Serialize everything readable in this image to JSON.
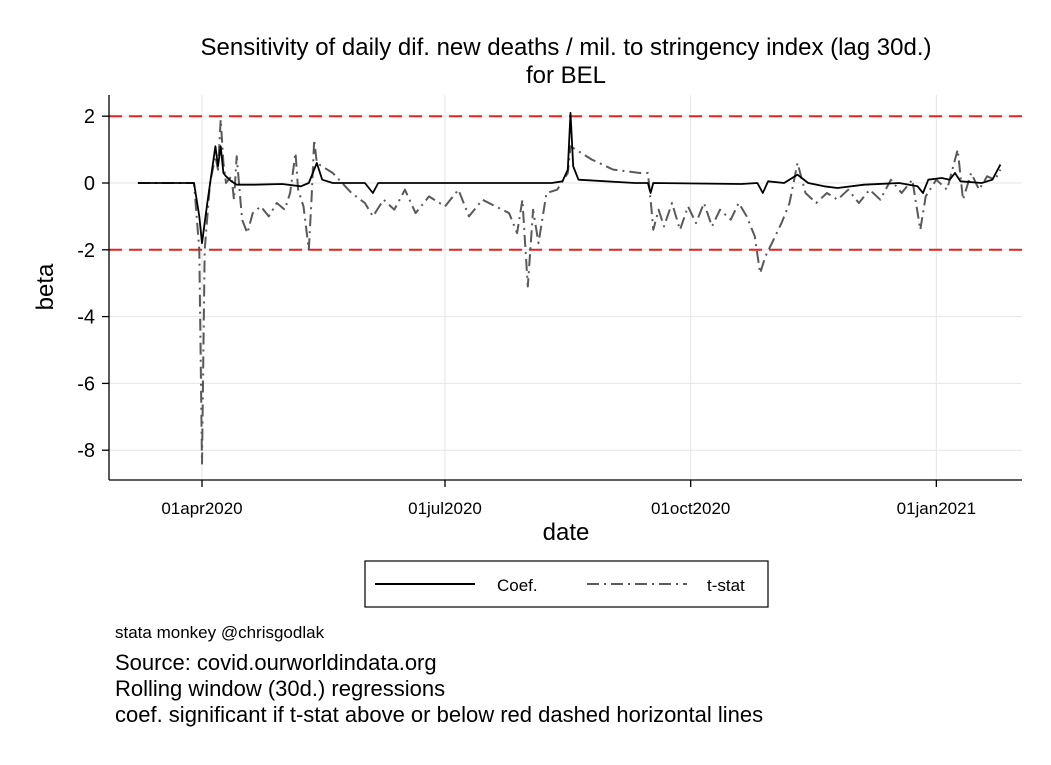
{
  "chart_data": {
    "type": "line",
    "title": "Sensitivity of daily dif. new deaths / mil. to stringency index (lag 30d.)",
    "subtitle": "for BEL",
    "xlabel": "date",
    "ylabel": "beta",
    "yticks": [
      "2",
      "0",
      "-2",
      "-4",
      "-6",
      "-8"
    ],
    "xticks": [
      "01apr2020",
      "01jul2020",
      "01oct2020",
      "01jan2021"
    ],
    "xlim": [
      "2020-03-01",
      "2021-01-31"
    ],
    "ylim": [
      -8.9,
      2.6
    ],
    "grid": true,
    "reference_lines": [
      2,
      -2
    ],
    "reference_line_color": "#e8211d",
    "legend_position": "bottom",
    "series": [
      {
        "name": "Coef.",
        "color": "#000000",
        "style": "solid",
        "points": [
          [
            "2020-03-08",
            0.0
          ],
          [
            "2020-03-29",
            0.0
          ],
          [
            "2020-03-31",
            -1.0
          ],
          [
            "2020-04-01",
            -1.8
          ],
          [
            "2020-04-03",
            -0.6
          ],
          [
            "2020-04-06",
            1.1
          ],
          [
            "2020-04-07",
            0.5
          ],
          [
            "2020-04-08",
            1.1
          ],
          [
            "2020-04-09",
            0.3
          ],
          [
            "2020-04-10",
            0.2
          ],
          [
            "2020-04-12",
            0.05
          ],
          [
            "2020-04-14",
            -0.05
          ],
          [
            "2020-04-20",
            -0.05
          ],
          [
            "2020-05-01",
            -0.03
          ],
          [
            "2020-05-08",
            -0.1
          ],
          [
            "2020-05-11",
            0.0
          ],
          [
            "2020-05-14",
            0.6
          ],
          [
            "2020-05-16",
            0.1
          ],
          [
            "2020-05-20",
            0.0
          ],
          [
            "2020-06-01",
            0.0
          ],
          [
            "2020-06-04",
            -0.3
          ],
          [
            "2020-06-06",
            0.0
          ],
          [
            "2020-06-20",
            0.0
          ],
          [
            "2020-07-20",
            0.0
          ],
          [
            "2020-08-10",
            0.0
          ],
          [
            "2020-08-14",
            0.05
          ],
          [
            "2020-08-16",
            0.4
          ],
          [
            "2020-08-17",
            2.1
          ],
          [
            "2020-08-18",
            0.5
          ],
          [
            "2020-08-20",
            0.1
          ],
          [
            "2020-09-10",
            0.0
          ],
          [
            "2020-09-15",
            0.0
          ],
          [
            "2020-09-16",
            -0.3
          ],
          [
            "2020-09-17",
            0.0
          ],
          [
            "2020-10-20",
            -0.03
          ],
          [
            "2020-10-26",
            0.0
          ],
          [
            "2020-10-28",
            -0.3
          ],
          [
            "2020-10-30",
            0.05
          ],
          [
            "2020-11-05",
            0.0
          ],
          [
            "2020-11-10",
            0.25
          ],
          [
            "2020-11-14",
            0.0
          ],
          [
            "2020-11-20",
            -0.1
          ],
          [
            "2020-11-25",
            -0.15
          ],
          [
            "2020-12-05",
            -0.05
          ],
          [
            "2020-12-18",
            0.0
          ],
          [
            "2020-12-25",
            -0.1
          ],
          [
            "2020-12-27",
            -0.3
          ],
          [
            "2020-12-29",
            0.1
          ],
          [
            "2021-01-03",
            0.15
          ],
          [
            "2021-01-06",
            0.1
          ],
          [
            "2021-01-08",
            0.3
          ],
          [
            "2021-01-10",
            0.05
          ],
          [
            "2021-01-18",
            0.0
          ],
          [
            "2021-01-22",
            0.1
          ],
          [
            "2021-01-25",
            0.55
          ]
        ]
      },
      {
        "name": "t-stat",
        "color": "#595959",
        "style": "dashdot",
        "points": [
          [
            "2020-03-08",
            0.0
          ],
          [
            "2020-03-29",
            0.0
          ],
          [
            "2020-03-31",
            -2.0
          ],
          [
            "2020-04-01",
            -8.4
          ],
          [
            "2020-04-02",
            -2.0
          ],
          [
            "2020-04-04",
            0.0
          ],
          [
            "2020-04-06",
            0.8
          ],
          [
            "2020-04-07",
            0.4
          ],
          [
            "2020-04-08",
            1.9
          ],
          [
            "2020-04-09",
            0.6
          ],
          [
            "2020-04-10",
            0.0
          ],
          [
            "2020-04-12",
            0.2
          ],
          [
            "2020-04-13",
            -0.5
          ],
          [
            "2020-04-14",
            0.8
          ],
          [
            "2020-04-16",
            -1.1
          ],
          [
            "2020-04-18",
            -1.5
          ],
          [
            "2020-04-20",
            -0.9
          ],
          [
            "2020-04-23",
            -0.7
          ],
          [
            "2020-04-26",
            -1.0
          ],
          [
            "2020-04-29",
            -0.6
          ],
          [
            "2020-05-02",
            -0.8
          ],
          [
            "2020-05-04",
            -0.3
          ],
          [
            "2020-05-06",
            0.9
          ],
          [
            "2020-05-07",
            -0.2
          ],
          [
            "2020-05-09",
            -0.7
          ],
          [
            "2020-05-11",
            -2.0
          ],
          [
            "2020-05-12",
            -0.5
          ],
          [
            "2020-05-13",
            1.3
          ],
          [
            "2020-05-14",
            0.6
          ],
          [
            "2020-05-20",
            0.3
          ],
          [
            "2020-05-27",
            -0.3
          ],
          [
            "2020-06-01",
            -0.6
          ],
          [
            "2020-06-04",
            -1.0
          ],
          [
            "2020-06-08",
            -0.5
          ],
          [
            "2020-06-12",
            -0.8
          ],
          [
            "2020-06-16",
            -0.2
          ],
          [
            "2020-06-20",
            -0.9
          ],
          [
            "2020-06-25",
            -0.4
          ],
          [
            "2020-07-01",
            -0.7
          ],
          [
            "2020-07-06",
            -0.2
          ],
          [
            "2020-07-10",
            -1.0
          ],
          [
            "2020-07-15",
            -0.5
          ],
          [
            "2020-07-20",
            -0.7
          ],
          [
            "2020-07-25",
            -0.9
          ],
          [
            "2020-07-28",
            -1.5
          ],
          [
            "2020-07-30",
            -0.5
          ],
          [
            "2020-08-01",
            -3.1
          ],
          [
            "2020-08-03",
            -0.8
          ],
          [
            "2020-08-05",
            -1.8
          ],
          [
            "2020-08-08",
            -0.3
          ],
          [
            "2020-08-12",
            -0.2
          ],
          [
            "2020-08-16",
            0.3
          ],
          [
            "2020-08-17",
            1.1
          ],
          [
            "2020-08-19",
            1.0
          ],
          [
            "2020-08-25",
            0.7
          ],
          [
            "2020-09-02",
            0.4
          ],
          [
            "2020-09-12",
            0.3
          ],
          [
            "2020-09-15",
            0.3
          ],
          [
            "2020-09-16",
            -0.5
          ],
          [
            "2020-09-17",
            -1.4
          ],
          [
            "2020-09-19",
            -0.8
          ],
          [
            "2020-09-21",
            -1.3
          ],
          [
            "2020-09-24",
            -0.6
          ],
          [
            "2020-09-27",
            -1.4
          ],
          [
            "2020-09-30",
            -0.7
          ],
          [
            "2020-10-03",
            -1.2
          ],
          [
            "2020-10-06",
            -0.6
          ],
          [
            "2020-10-09",
            -1.3
          ],
          [
            "2020-10-12",
            -0.8
          ],
          [
            "2020-10-16",
            -1.1
          ],
          [
            "2020-10-19",
            -0.6
          ],
          [
            "2020-10-22",
            -1.0
          ],
          [
            "2020-10-25",
            -1.6
          ],
          [
            "2020-10-27",
            -2.7
          ],
          [
            "2020-10-29",
            -2.2
          ],
          [
            "2020-11-01",
            -1.7
          ],
          [
            "2020-11-04",
            -1.2
          ],
          [
            "2020-11-07",
            -0.6
          ],
          [
            "2020-11-10",
            0.6
          ],
          [
            "2020-11-13",
            -0.3
          ],
          [
            "2020-11-17",
            -0.6
          ],
          [
            "2020-11-21",
            -0.3
          ],
          [
            "2020-11-25",
            -0.5
          ],
          [
            "2020-11-29",
            -0.2
          ],
          [
            "2020-12-03",
            -0.6
          ],
          [
            "2020-12-07",
            -0.2
          ],
          [
            "2020-12-11",
            -0.5
          ],
          [
            "2020-12-15",
            0.1
          ],
          [
            "2020-12-19",
            -0.3
          ],
          [
            "2020-12-23",
            0.1
          ],
          [
            "2020-12-26",
            -1.4
          ],
          [
            "2020-12-28",
            -0.4
          ],
          [
            "2021-01-01",
            0.1
          ],
          [
            "2021-01-05",
            -0.2
          ],
          [
            "2021-01-09",
            1.0
          ],
          [
            "2021-01-11",
            -0.5
          ],
          [
            "2021-01-14",
            0.3
          ],
          [
            "2021-01-17",
            -0.2
          ],
          [
            "2021-01-20",
            0.2
          ],
          [
            "2021-01-23",
            0.1
          ],
          [
            "2021-01-25",
            0.4
          ]
        ]
      }
    ]
  },
  "notes": {
    "credit": "stata monkey @chrisgodlak",
    "lines": [
      "Source: covid.ourworldindata.org",
      "Rolling window (30d.) regressions",
      "coef. significant if t-stat above or below red dashed horizontal lines"
    ]
  }
}
